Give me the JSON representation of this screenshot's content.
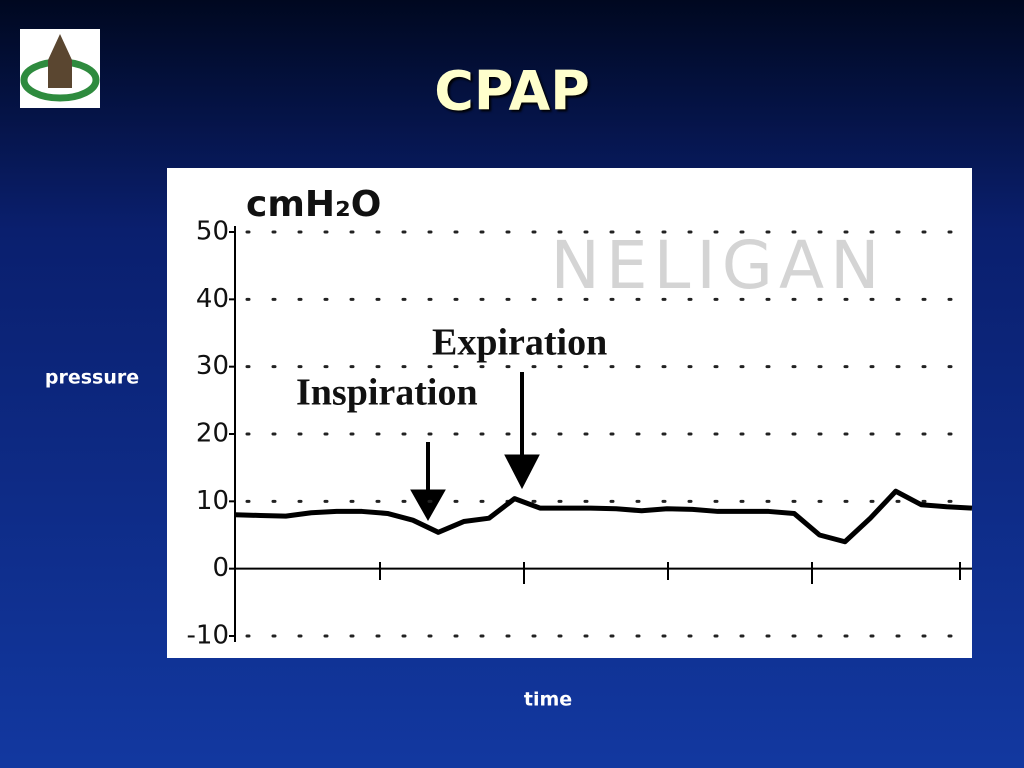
{
  "slide_title": "CPAP",
  "chart_data": {
    "type": "line",
    "y_unit": "cmH₂O",
    "watermark": "NELIGAN",
    "annotations": [
      "Inspiration",
      "Expiration"
    ],
    "ylabel": "pressure",
    "xlabel": "time",
    "categories": [
      null,
      null,
      null,
      null,
      null,
      null,
      null,
      null,
      null,
      null,
      null,
      null,
      null,
      null,
      null,
      null,
      null,
      null,
      null,
      null,
      null,
      null,
      null,
      null,
      null,
      null,
      null,
      null,
      null,
      null
    ],
    "values": [
      8,
      7.9,
      7.8,
      8.3,
      8.5,
      8.5,
      8.2,
      7.2,
      5.4,
      7,
      7.5,
      10.4,
      9,
      9,
      9,
      8.9,
      8.6,
      8.9,
      8.8,
      8.5,
      8.5,
      8.5,
      8.2,
      5,
      4,
      7.5,
      11.5,
      9.5,
      9.2,
      9
    ],
    "color": "#000000",
    "ylim": [
      -10,
      50
    ],
    "yticks": [
      -10,
      0,
      10,
      20,
      30,
      40,
      50
    ],
    "grid": true
  }
}
